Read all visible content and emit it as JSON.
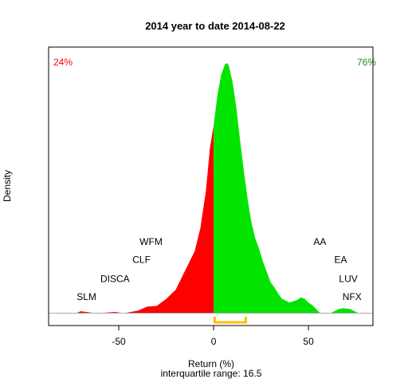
{
  "chart_data": {
    "type": "area",
    "title": "2014  year to date 2014-08-22",
    "xlabel": "Return (%)",
    "subtitle": "interquartile range: 16.5",
    "ylabel": "Density",
    "xlim": [
      -87,
      84
    ],
    "ylim": [
      0,
      1
    ],
    "x_ticks": [
      -50,
      0,
      50
    ],
    "grid": false,
    "split_at": 0,
    "negative_share_label": "24%",
    "positive_share_label": "76%",
    "interquartile_range": [
      0.5,
      17
    ],
    "colors": {
      "negative": "#ff0000",
      "positive": "#00e400",
      "iqr_bracket": "#ffc000",
      "baseline": "#aaaaaa",
      "text": "#000000"
    },
    "density_curve": {
      "x": [
        -87,
        -72,
        -70,
        -67,
        -64,
        -58,
        -52,
        -49,
        -46,
        -40,
        -35,
        -30,
        -25,
        -20,
        -15,
        -10,
        -7,
        -4,
        -2,
        0,
        2,
        4,
        6,
        7,
        8,
        10,
        12,
        14,
        16,
        18,
        20,
        22,
        24,
        26,
        28,
        30,
        32,
        34,
        36,
        40,
        44,
        46,
        48,
        50,
        52,
        56,
        62,
        66,
        68,
        72,
        76,
        84
      ],
      "y": [
        0.0,
        0.0,
        0.006,
        0.003,
        0.0,
        0.0,
        0.003,
        0.0,
        0.0,
        0.008,
        0.024,
        0.027,
        0.054,
        0.09,
        0.165,
        0.24,
        0.33,
        0.48,
        0.64,
        0.73,
        0.85,
        0.93,
        0.97,
        0.975,
        0.965,
        0.9,
        0.8,
        0.67,
        0.55,
        0.44,
        0.35,
        0.29,
        0.25,
        0.2,
        0.16,
        0.12,
        0.1,
        0.075,
        0.055,
        0.04,
        0.05,
        0.06,
        0.055,
        0.04,
        0.03,
        0.0,
        0.0,
        0.015,
        0.018,
        0.015,
        0.0,
        0.0
      ]
    },
    "annotations": [
      {
        "label": "SLM",
        "x": -67,
        "y": 0.05
      },
      {
        "label": "DISCA",
        "x": -52,
        "y": 0.12
      },
      {
        "label": "CLF",
        "x": -38,
        "y": 0.195
      },
      {
        "label": "WFM",
        "x": -33,
        "y": 0.265
      },
      {
        "label": "AA",
        "x": 56,
        "y": 0.265
      },
      {
        "label": "EA",
        "x": 67,
        "y": 0.195
      },
      {
        "label": "LUV",
        "x": 71,
        "y": 0.12
      },
      {
        "label": "NFX",
        "x": 73,
        "y": 0.05
      }
    ]
  }
}
